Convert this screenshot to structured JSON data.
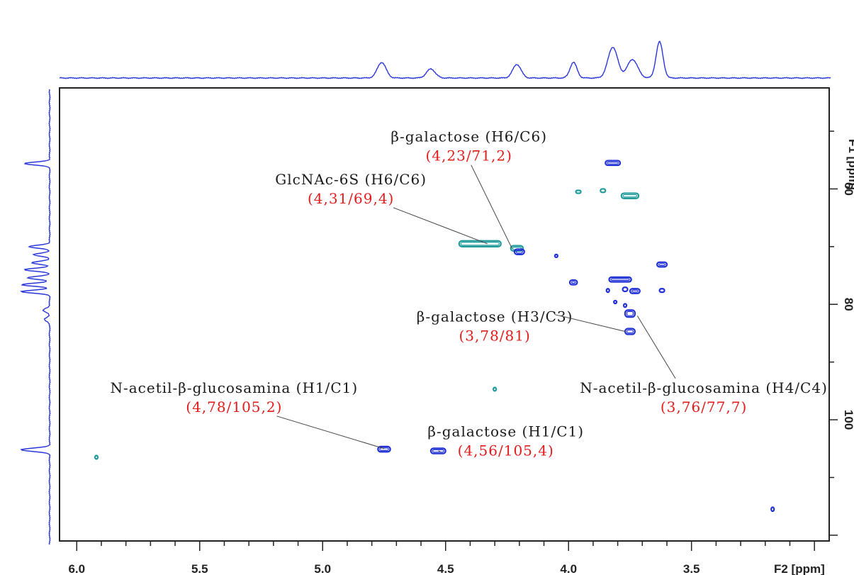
{
  "chart_data": {
    "type": "scatter",
    "subtype": "2D NMR HSQC contour map",
    "xlabel": "F2 [ppm]",
    "ylabel": "F1 [ppm]",
    "xlim": [
      6.07,
      2.94
    ],
    "ylim": [
      42.5,
      121
    ],
    "x_ticks": [
      6.0,
      5.5,
      5.0,
      4.5,
      4.0,
      3.5
    ],
    "x_tick_labels": [
      "6.0",
      "5.5",
      "5.0",
      "4.5",
      "4.0",
      "3.5"
    ],
    "y_ticks": [
      60,
      80,
      100
    ],
    "y_tick_labels": [
      "60",
      "80",
      "100"
    ],
    "grid": false,
    "colors": {
      "positive": "#1f2fd6",
      "negative": "#1f9a9a",
      "projection": "#2b36d9",
      "leader": "#444444",
      "value_text": "#e21b1b"
    },
    "projection_f2": [
      {
        "center": 4.76,
        "height": 0.38,
        "width": 0.025
      },
      {
        "center": 4.56,
        "height": 0.22,
        "width": 0.025
      },
      {
        "center": 4.21,
        "height": 0.33,
        "width": 0.024
      },
      {
        "center": 3.98,
        "height": 0.38,
        "width": 0.02
      },
      {
        "center": 3.82,
        "height": 0.75,
        "width": 0.028
      },
      {
        "center": 3.74,
        "height": 0.45,
        "width": 0.03
      },
      {
        "center": 3.63,
        "height": 0.88,
        "width": 0.02
      }
    ],
    "projection_f1": [
      {
        "center": 55.6,
        "height": 0.85,
        "width": 0.35
      },
      {
        "center": 70.0,
        "height": 0.7,
        "width": 0.35
      },
      {
        "center": 71.4,
        "height": 0.55,
        "width": 0.35
      },
      {
        "center": 72.8,
        "height": 0.6,
        "width": 0.35
      },
      {
        "center": 74.0,
        "height": 0.85,
        "width": 0.35
      },
      {
        "center": 75.4,
        "height": 0.75,
        "width": 0.35
      },
      {
        "center": 76.6,
        "height": 0.95,
        "width": 0.35
      },
      {
        "center": 77.8,
        "height": 0.95,
        "width": 0.35
      },
      {
        "center": 81.0,
        "height": 0.22,
        "width": 0.45
      },
      {
        "center": 82.6,
        "height": 0.18,
        "width": 0.45
      },
      {
        "center": 105.2,
        "height": 0.95,
        "width": 0.4
      }
    ],
    "peaks": [
      {
        "x": 4.36,
        "y": 69.5,
        "w": 0.17,
        "h": 1.0,
        "phase": "negative"
      },
      {
        "x": 4.21,
        "y": 70.3,
        "w": 0.05,
        "h": 0.9,
        "phase": "negative"
      },
      {
        "x": 4.2,
        "y": 70.9,
        "w": 0.04,
        "h": 0.9,
        "phase": "positive"
      },
      {
        "x": 3.82,
        "y": 55.5,
        "w": 0.06,
        "h": 0.8,
        "phase": "positive"
      },
      {
        "x": 3.75,
        "y": 61.2,
        "w": 0.07,
        "h": 0.9,
        "phase": "negative"
      },
      {
        "x": 3.86,
        "y": 60.3,
        "w": 0.02,
        "h": 0.6,
        "phase": "negative"
      },
      {
        "x": 3.96,
        "y": 60.5,
        "w": 0.02,
        "h": 0.5,
        "phase": "negative"
      },
      {
        "x": 3.79,
        "y": 75.7,
        "w": 0.09,
        "h": 0.8,
        "phase": "positive"
      },
      {
        "x": 3.98,
        "y": 76.2,
        "w": 0.03,
        "h": 0.8,
        "phase": "positive"
      },
      {
        "x": 3.62,
        "y": 73.1,
        "w": 0.04,
        "h": 0.8,
        "phase": "positive"
      },
      {
        "x": 3.73,
        "y": 77.7,
        "w": 0.04,
        "h": 0.8,
        "phase": "positive"
      },
      {
        "x": 3.77,
        "y": 77.4,
        "w": 0.02,
        "h": 0.7,
        "phase": "positive"
      },
      {
        "x": 3.62,
        "y": 77.6,
        "w": 0.02,
        "h": 0.6,
        "phase": "positive"
      },
      {
        "x": 3.84,
        "y": 77.6,
        "w": 0.01,
        "h": 0.6,
        "phase": "positive"
      },
      {
        "x": 3.75,
        "y": 81.6,
        "w": 0.04,
        "h": 1.2,
        "phase": "positive"
      },
      {
        "x": 3.75,
        "y": 84.7,
        "w": 0.04,
        "h": 1.0,
        "phase": "positive"
      },
      {
        "x": 3.77,
        "y": 80.2,
        "w": 0.01,
        "h": 0.6,
        "phase": "positive"
      },
      {
        "x": 3.81,
        "y": 79.6,
        "w": 0.01,
        "h": 0.5,
        "phase": "positive"
      },
      {
        "x": 4.05,
        "y": 71.6,
        "w": 0.01,
        "h": 0.5,
        "phase": "positive"
      },
      {
        "x": 4.75,
        "y": 105.1,
        "w": 0.05,
        "h": 0.9,
        "phase": "positive"
      },
      {
        "x": 4.53,
        "y": 105.4,
        "w": 0.06,
        "h": 0.9,
        "phase": "positive"
      },
      {
        "x": 4.3,
        "y": 94.7,
        "w": 0.01,
        "h": 0.6,
        "phase": "negative"
      },
      {
        "x": 5.92,
        "y": 106.5,
        "w": 0.01,
        "h": 0.6,
        "phase": "negative"
      },
      {
        "x": 3.17,
        "y": 115.5,
        "w": 0.01,
        "h": 0.7,
        "phase": "positive"
      }
    ],
    "annotations": [
      {
        "name": "β-galactose (H6/C6)",
        "value": "(4,23/71,2)",
        "label_x": 4.405,
        "label_y": 51.8,
        "target_x": 4.23,
        "target_y": 70.3
      },
      {
        "name": "GlcNAc-6S (H6/C6)",
        "value": "(4,31/69,4)",
        "label_x": 4.885,
        "label_y": 59.2,
        "target_x": 4.33,
        "target_y": 69.5
      },
      {
        "name": "β-galactose (H3/C3)",
        "value": "(3,78/81)",
        "label_x": 4.3,
        "label_y": 83.0,
        "target_x": 3.77,
        "target_y": 84.7
      },
      {
        "name": "N-acetil-β-glucosamina (H1/C1)",
        "value": "(4,78/105,2)",
        "label_x": 5.36,
        "label_y": 95.3,
        "target_x": 4.75,
        "target_y": 105.0
      },
      {
        "name": "N-acetil-β-glucosamina (H4/C4)",
        "value": "(3,76/77,7)",
        "label_x": 3.45,
        "label_y": 95.3,
        "target_x": 3.72,
        "target_y": 82.0
      },
      {
        "name": "β-galactose (H1/C1)",
        "value": "(4,56/105,4)",
        "label_x": 4.255,
        "label_y": 102.9,
        "target_x": 4.52,
        "target_y": 105.6
      }
    ]
  }
}
